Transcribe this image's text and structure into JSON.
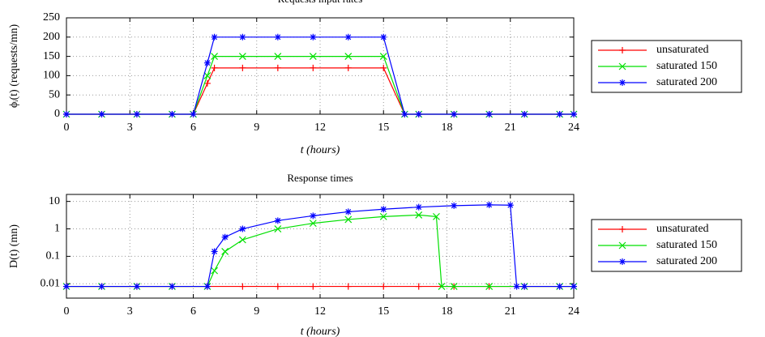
{
  "chart_data": [
    {
      "type": "line",
      "title": "Requests input rates",
      "xlabel": "t (hours)",
      "ylabel": "ϕᵢ(t) (requests/mn)",
      "x": [
        0,
        1.667,
        3.333,
        5,
        6,
        6.667,
        7,
        8.333,
        10,
        11.667,
        13.333,
        15,
        16,
        16.667,
        18.333,
        20,
        21.667,
        23.333,
        24
      ],
      "series": [
        {
          "name": "unsaturated",
          "color": "#ff0000",
          "values": [
            0,
            0,
            0,
            0,
            0,
            80,
            120,
            120,
            120,
            120,
            120,
            120,
            0,
            0,
            0,
            0,
            0,
            0,
            0
          ]
        },
        {
          "name": "saturated 150",
          "color": "#00e000",
          "values": [
            0,
            0,
            0,
            0,
            0,
            100,
            150,
            150,
            150,
            150,
            150,
            150,
            0,
            0,
            0,
            0,
            0,
            0,
            0
          ]
        },
        {
          "name": "saturated 200",
          "color": "#0000ff",
          "values": [
            0,
            0,
            0,
            0,
            0,
            133,
            200,
            200,
            200,
            200,
            200,
            200,
            0,
            0,
            0,
            0,
            0,
            0,
            0
          ]
        }
      ],
      "xlim": [
        0,
        24
      ],
      "xticks": [
        0,
        3,
        6,
        9,
        12,
        15,
        18,
        21,
        24
      ],
      "ylim": [
        0,
        250
      ],
      "yticks": [
        0,
        50,
        100,
        150,
        200,
        250
      ],
      "grid": true,
      "legend": "right"
    },
    {
      "type": "line",
      "title": "Response times",
      "xlabel": "t (hours)",
      "ylabel": "D(t) (mn)",
      "log_y": true,
      "series": [
        {
          "name": "unsaturated",
          "color": "#ff0000",
          "x": [
            0,
            1.667,
            3.333,
            5,
            6.667,
            8.333,
            10,
            11.667,
            13.333,
            15,
            16.667,
            18.333,
            20,
            21.667,
            23.333,
            24
          ],
          "values": [
            0.008,
            0.008,
            0.008,
            0.008,
            0.008,
            0.008,
            0.008,
            0.008,
            0.008,
            0.008,
            0.008,
            0.008,
            0.008,
            0.008,
            0.008,
            0.008
          ]
        },
        {
          "name": "saturated 150",
          "color": "#00e000",
          "x": [
            0,
            1.667,
            3.333,
            5,
            6.667,
            7,
            7.5,
            8.333,
            10,
            11.667,
            13.333,
            15,
            16.667,
            17.5,
            17.75,
            18.333,
            20,
            21.667,
            23.333,
            24
          ],
          "values": [
            0.008,
            0.008,
            0.008,
            0.008,
            0.008,
            0.03,
            0.15,
            0.4,
            1.0,
            1.6,
            2.2,
            2.8,
            3.2,
            2.8,
            0.008,
            0.008,
            0.008,
            0.008,
            0.008,
            0.008
          ]
        },
        {
          "name": "saturated 200",
          "color": "#0000ff",
          "x": [
            0,
            1.667,
            3.333,
            5,
            6.667,
            7,
            7.5,
            8.333,
            10,
            11.667,
            13.333,
            15,
            16.667,
            18.333,
            20,
            21,
            21.3,
            21.667,
            23.333,
            24
          ],
          "values": [
            0.008,
            0.008,
            0.008,
            0.008,
            0.008,
            0.15,
            0.5,
            1.0,
            2.0,
            3.0,
            4.2,
            5.2,
            6.2,
            7,
            7.5,
            7.3,
            0.008,
            0.008,
            0.008,
            0.008
          ]
        }
      ],
      "xlim": [
        0,
        24
      ],
      "xticks": [
        0,
        3,
        6,
        9,
        12,
        15,
        18,
        21,
        24
      ],
      "ylim": [
        0.003,
        18
      ],
      "yticks": [
        0.01,
        0.1,
        1,
        10
      ],
      "grid": true,
      "legend": "right"
    }
  ]
}
